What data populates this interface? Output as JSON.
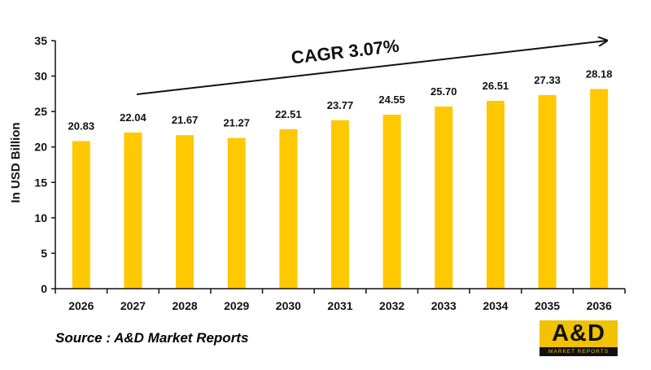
{
  "chart_data": {
    "type": "bar",
    "categories": [
      "2026",
      "2027",
      "2028",
      "2029",
      "2030",
      "2031",
      "2032",
      "2033",
      "2034",
      "2035",
      "2036"
    ],
    "values": [
      20.83,
      22.04,
      21.67,
      21.27,
      22.51,
      23.77,
      24.55,
      25.7,
      26.51,
      27.33,
      28.18
    ],
    "data_labels": [
      "20.83",
      "22.04",
      "21.67",
      "21.27",
      "22.51",
      "23.77",
      "24.55",
      "25.70",
      "26.51",
      "27.33",
      "28.18"
    ],
    "ylabel": "In USD Billion",
    "xlabel": "",
    "ylim": [
      0,
      35
    ],
    "yticks": [
      0,
      5,
      10,
      15,
      20,
      25,
      30,
      35
    ],
    "annotation": "CAGR 3.07%",
    "bar_color": "#ffc800",
    "grid": false,
    "legend": "none"
  },
  "source": "Source : A&D Market Reports",
  "logo": {
    "word": "A&D",
    "tagline": "MARKET REPORTS"
  }
}
